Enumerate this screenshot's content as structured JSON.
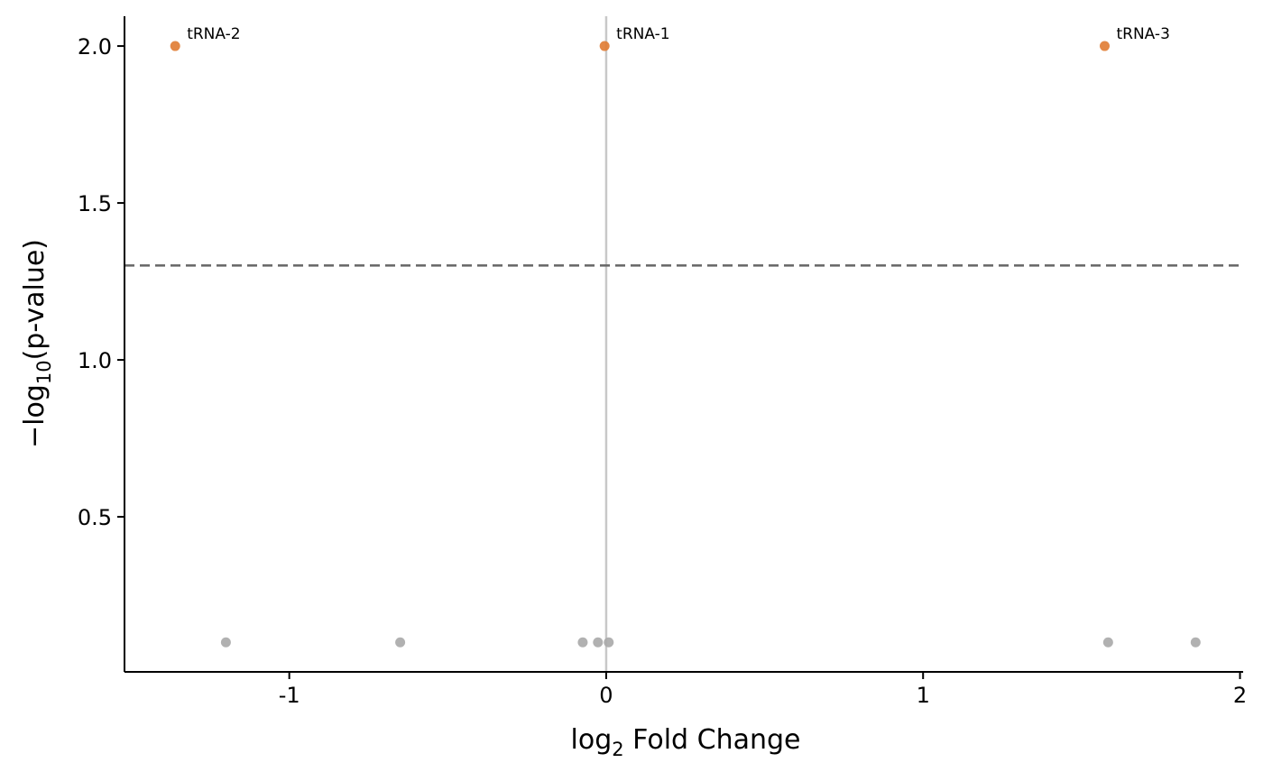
{
  "chart_data": {
    "type": "scatter",
    "title": "",
    "xlabel": "log2 Fold Change",
    "ylabel": "−log10(p-value)",
    "xlim": [
      -1.52,
      2.01
    ],
    "ylim": [
      0.006,
      2.095
    ],
    "x_ticks": [
      -1,
      0,
      1,
      2
    ],
    "x_tick_labels": [
      "-1",
      "0",
      "1",
      "2"
    ],
    "y_ticks": [
      0.5,
      1.0,
      1.5,
      2.0
    ],
    "y_tick_labels": [
      "0.5",
      "1.0",
      "1.5",
      "2.0"
    ],
    "grid": false,
    "significance_threshold_y": 1.301,
    "reference_line_x": 0,
    "colors": {
      "significant": "#e07b32",
      "not_significant": "#a9a9a9",
      "threshold_line": "#666666",
      "reference_line": "#c8c8c8"
    },
    "series": [
      {
        "group": "significant",
        "points": [
          {
            "x": -1.36,
            "y": 2.0,
            "label": "tRNA-2"
          },
          {
            "x": -0.005,
            "y": 2.0,
            "label": "tRNA-1"
          },
          {
            "x": 1.573,
            "y": 2.0,
            "label": "tRNA-3"
          }
        ]
      },
      {
        "group": "not_significant",
        "points": [
          {
            "x": -1.2,
            "y": 0.1
          },
          {
            "x": -0.65,
            "y": 0.1
          },
          {
            "x": -0.074,
            "y": 0.1
          },
          {
            "x": -0.026,
            "y": 0.1
          },
          {
            "x": 0.008,
            "y": 0.1
          },
          {
            "x": 1.584,
            "y": 0.1
          },
          {
            "x": 1.86,
            "y": 0.1
          }
        ]
      }
    ]
  }
}
